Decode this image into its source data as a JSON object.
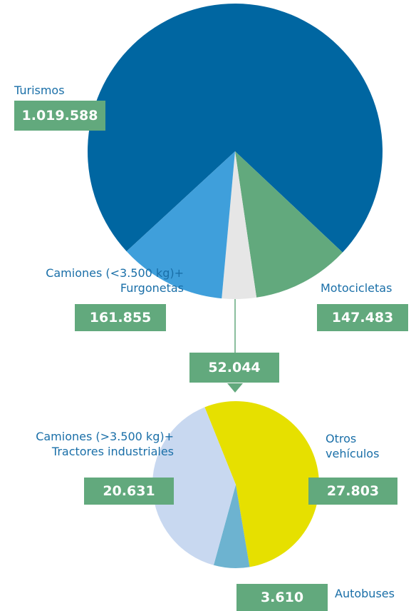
{
  "chart_data": [
    {
      "type": "pie",
      "categories": [
        "Turismos",
        "Motocicletas",
        null,
        "Camiones (<3.500 kg)+\nFurgonetas"
      ],
      "values": [
        1019588,
        147483,
        52044,
        161855
      ],
      "value_labels": [
        "1.019.588",
        "147.483",
        "52.044",
        "161.855"
      ],
      "colors": [
        "#0066a1",
        "#62a97d",
        "#e6e6e6",
        "#3f9fdb"
      ]
    },
    {
      "type": "pie",
      "categories": [
        "Otros\nvehículos",
        "Autobuses",
        "Camiones (>3.500 kg)+\nTractores industriales"
      ],
      "values": [
        27803,
        3610,
        20631
      ],
      "value_labels": [
        "27.803",
        "3.610",
        "20.631"
      ],
      "colors": [
        "#e6e000",
        "#6db3d0",
        "#c8d8f0"
      ]
    }
  ]
}
